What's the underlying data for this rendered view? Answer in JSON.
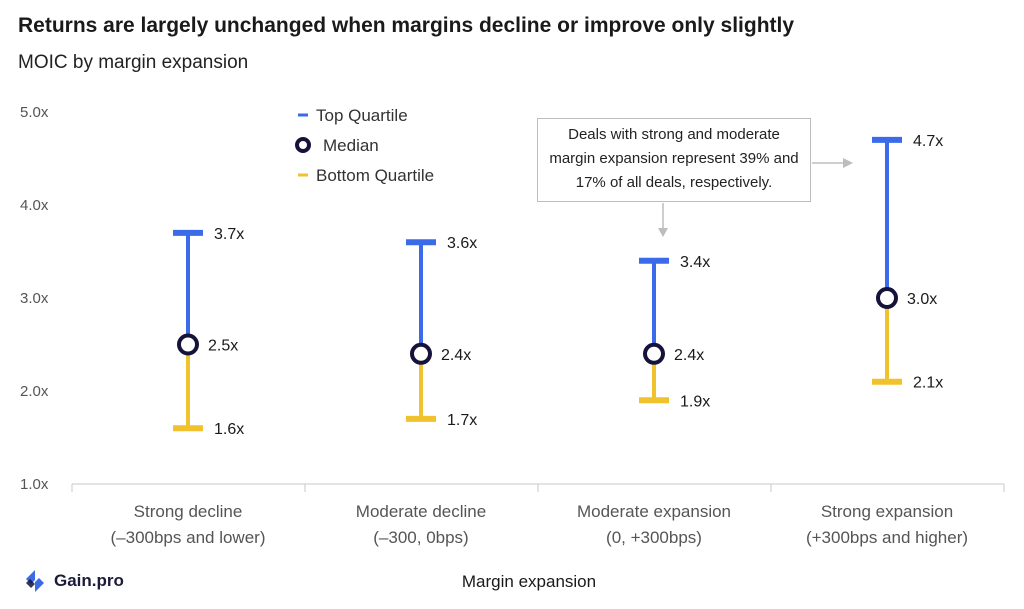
{
  "title": "Returns are largely unchanged when margins decline or improve only slightly",
  "subtitle": "MOIC by margin expansion",
  "annotation": {
    "line1": "Deals with strong and moderate",
    "line2": "margin expansion represent 39% and",
    "line3": "17% of all deals, respectively."
  },
  "logo": {
    "text": "Gain.pro",
    "icon": "gain-pro-logo-icon"
  },
  "colors": {
    "top": "#3b6be8",
    "bottom": "#f0c22d",
    "median": "#15133a",
    "axis": "#c8c8c8"
  },
  "chart_data": {
    "type": "range",
    "title": "Returns are largely unchanged when margins decline or improve only slightly",
    "subtitle": "MOIC by margin expansion",
    "xlabel": "Margin expansion",
    "ylabel": "",
    "ylim": [
      1.0,
      5.0
    ],
    "yticks": [
      1.0,
      2.0,
      3.0,
      4.0,
      5.0
    ],
    "ytick_labels": [
      "1.0x",
      "2.0x",
      "3.0x",
      "4.0x",
      "5.0x"
    ],
    "categories": [
      [
        "Strong decline",
        "(–300bps and lower)"
      ],
      [
        "Moderate decline",
        "(–300, 0bps)"
      ],
      [
        "Moderate expansion",
        "(0, +300bps)"
      ],
      [
        "Strong expansion",
        "(+300bps and higher)"
      ]
    ],
    "series": [
      {
        "name": "Top Quartile",
        "values": [
          3.7,
          3.6,
          3.4,
          4.7
        ],
        "labels": [
          "3.7x",
          "3.6x",
          "3.4x",
          "4.7x"
        ]
      },
      {
        "name": "Median",
        "values": [
          2.5,
          2.4,
          2.4,
          3.0
        ],
        "labels": [
          "2.5x",
          "2.4x",
          "2.4x",
          "3.0x"
        ]
      },
      {
        "name": "Bottom Quartile",
        "values": [
          1.6,
          1.7,
          1.9,
          2.1
        ],
        "labels": [
          "1.6x",
          "1.7x",
          "1.9x",
          "2.1x"
        ]
      }
    ],
    "legend": [
      "Top Quartile",
      "Median",
      "Bottom Quartile"
    ],
    "legend_position": "top-left",
    "grid": false
  }
}
